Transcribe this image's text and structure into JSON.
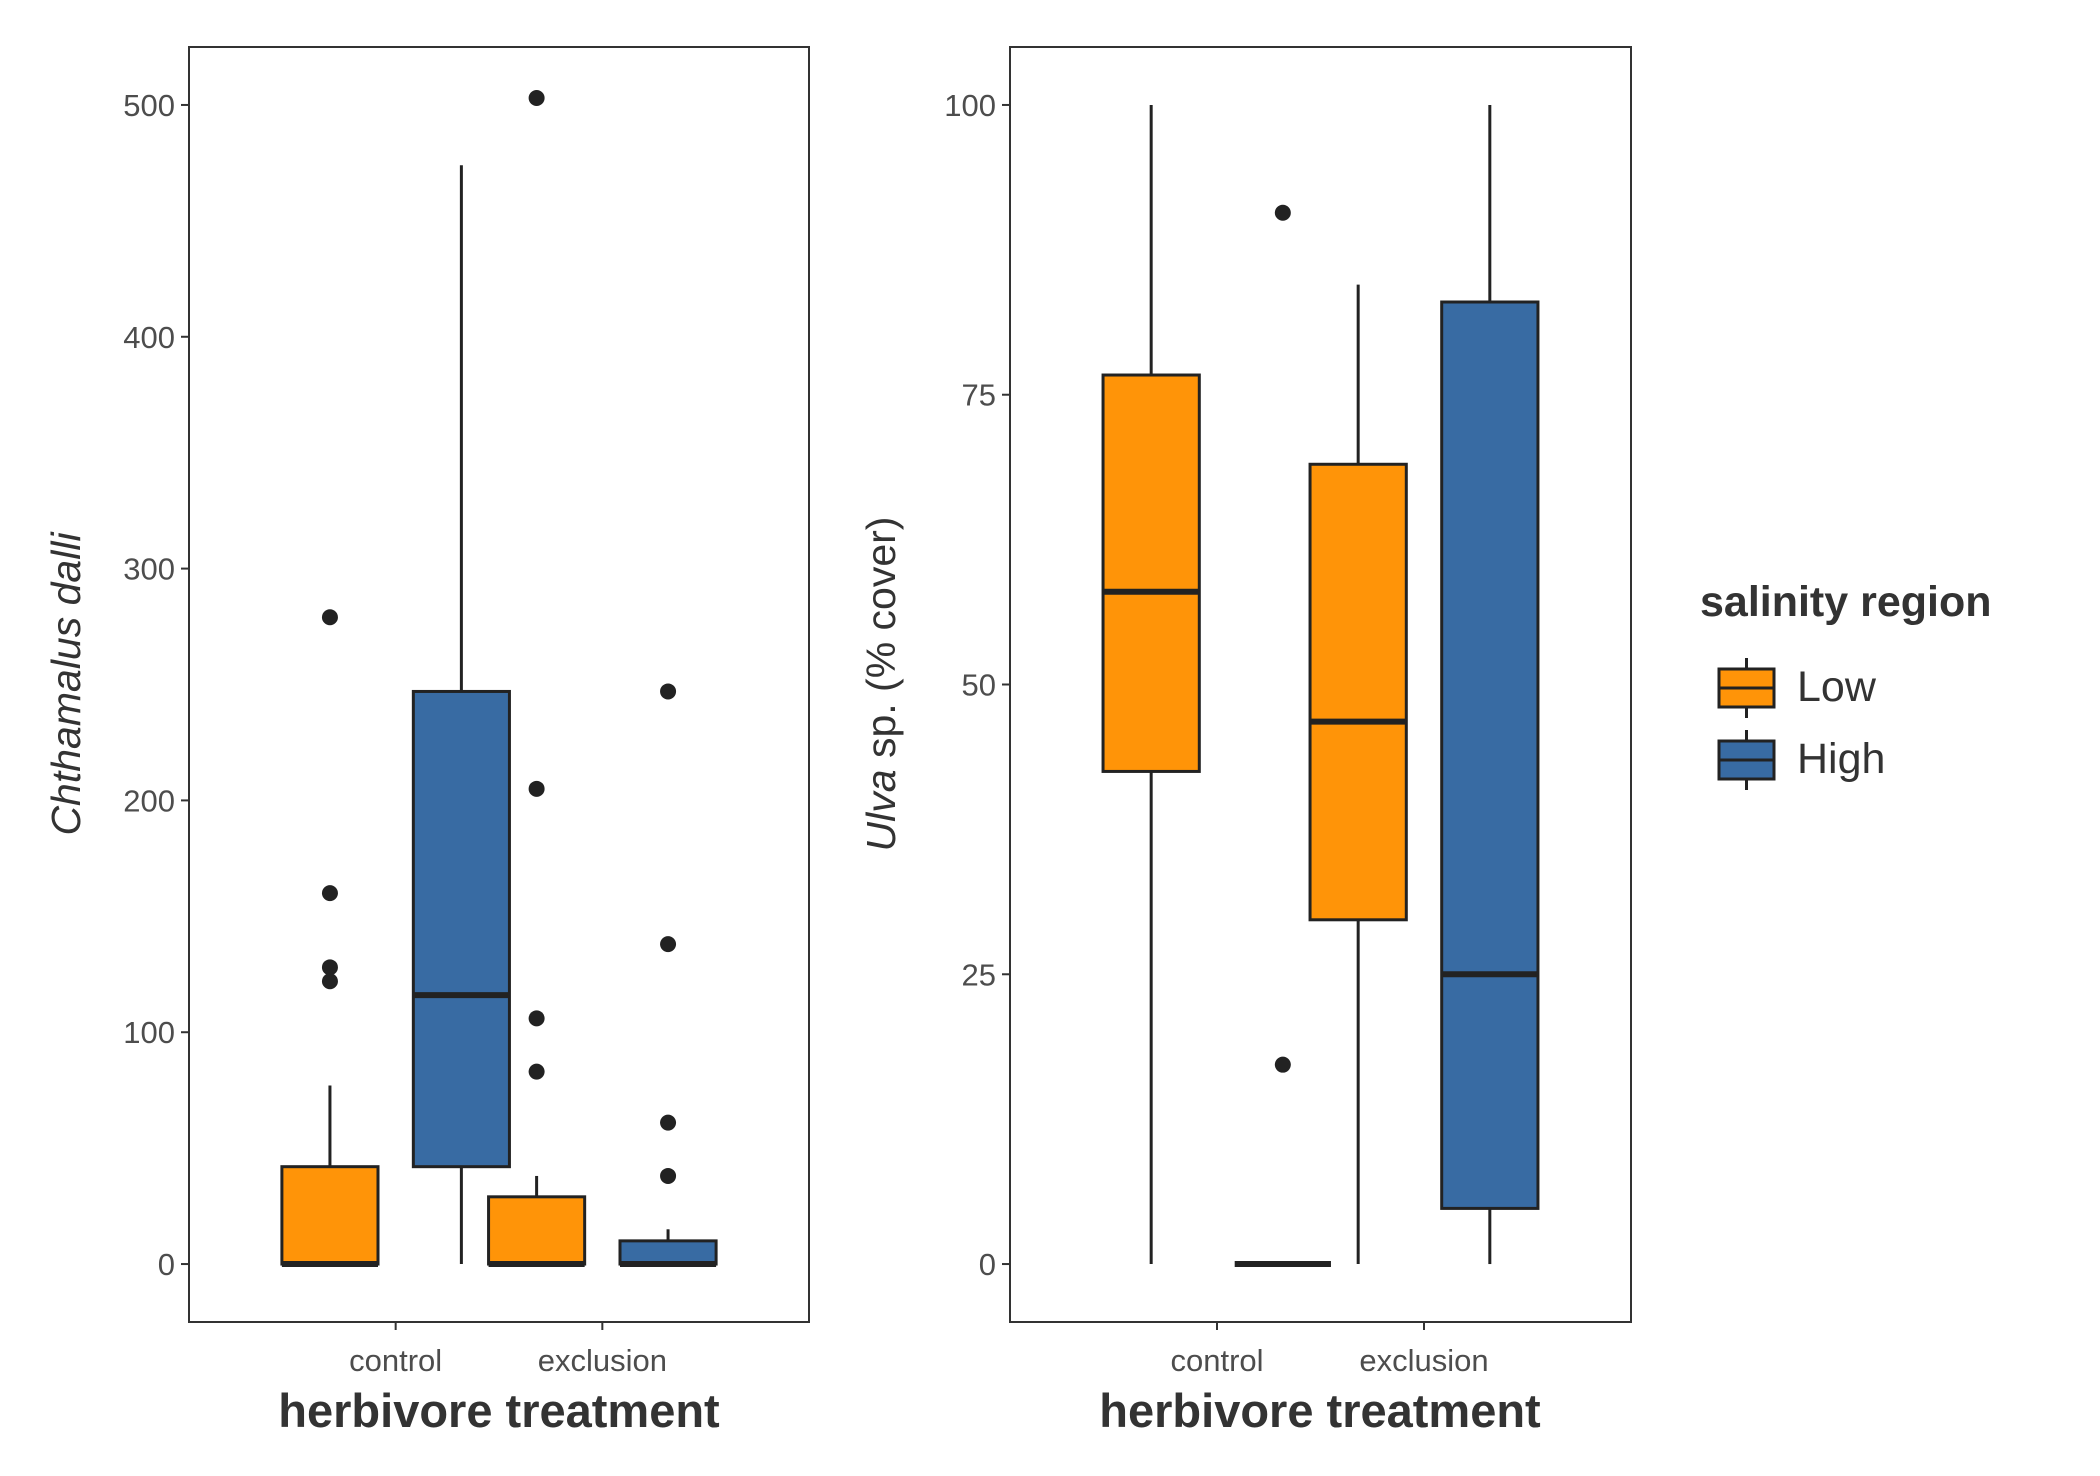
{
  "chart_data": [
    {
      "type": "boxplot",
      "xlabel": "herbivore treatment",
      "ylabel_italic": "Chthamalus dalli",
      "ylabel_rest": "",
      "ylim": [
        -25,
        525
      ],
      "yticks": [
        0,
        100,
        200,
        300,
        400,
        500
      ],
      "categories": [
        "control",
        "exclusion"
      ],
      "series": [
        {
          "name": "Low",
          "boxes": [
            {
              "category": "control",
              "whisker_low": 0,
              "q1": 0,
              "median": 0,
              "q3": 42,
              "whisker_high": 77,
              "outliers": [
                122,
                128,
                160,
                279
              ]
            },
            {
              "category": "exclusion",
              "whisker_low": 0,
              "q1": 0,
              "median": 0,
              "q3": 29,
              "whisker_high": 38,
              "outliers": [
                83,
                106,
                205,
                503
              ]
            }
          ]
        },
        {
          "name": "High",
          "boxes": [
            {
              "category": "control",
              "whisker_low": 0,
              "q1": 42,
              "median": 116,
              "q3": 247,
              "whisker_high": 474,
              "outliers": []
            },
            {
              "category": "exclusion",
              "whisker_low": 0,
              "q1": 0,
              "median": 0,
              "q3": 10,
              "whisker_high": 15,
              "outliers": [
                38,
                61,
                138,
                247
              ]
            }
          ]
        }
      ]
    },
    {
      "type": "boxplot",
      "xlabel": "herbivore treatment",
      "ylabel_italic": "Ulva",
      "ylabel_rest": " sp. (% cover)",
      "ylim": [
        -5,
        105
      ],
      "yticks": [
        0,
        25,
        50,
        75,
        100
      ],
      "categories": [
        "control",
        "exclusion"
      ],
      "series": [
        {
          "name": "Low",
          "boxes": [
            {
              "category": "control",
              "whisker_low": 0,
              "q1": 42.5,
              "median": 58,
              "q3": 76.7,
              "whisker_high": 100,
              "outliers": []
            },
            {
              "category": "exclusion",
              "whisker_low": 0,
              "q1": 29.7,
              "median": 46.8,
              "q3": 69,
              "whisker_high": 84.5,
              "outliers": []
            }
          ]
        },
        {
          "name": "High",
          "boxes": [
            {
              "category": "control",
              "whisker_low": 0,
              "q1": 0,
              "median": 0,
              "q3": 0,
              "whisker_high": 0,
              "outliers": [
                17.2,
                90.7
              ]
            },
            {
              "category": "exclusion",
              "whisker_low": 0,
              "q1": 4.8,
              "median": 25,
              "q3": 83,
              "whisker_high": 100,
              "outliers": []
            }
          ]
        }
      ]
    }
  ],
  "legend": {
    "title": "salinity region",
    "items": [
      {
        "label": "Low",
        "color": "#FF9408"
      },
      {
        "label": "High",
        "color": "#386BA3"
      }
    ]
  },
  "colors": {
    "Low": "#FF9408",
    "High": "#386BA3",
    "stroke": "#222222",
    "tick_text": "#4d4d4d",
    "title_text": "#333333"
  }
}
